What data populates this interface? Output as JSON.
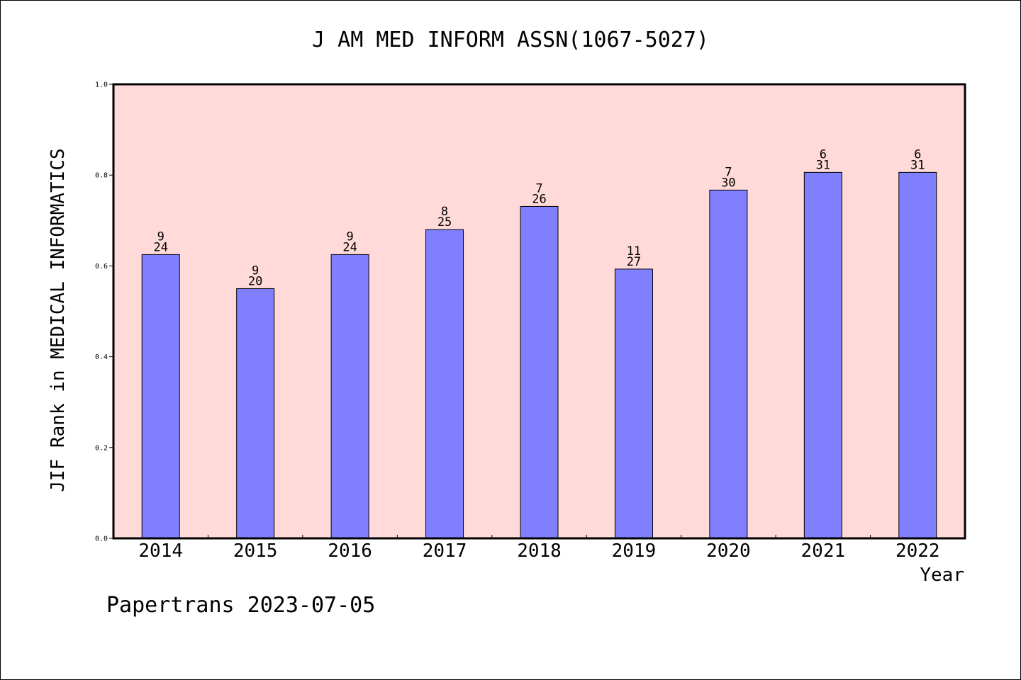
{
  "chart_data": {
    "type": "bar",
    "title": "J AM MED INFORM ASSN(1067-5027)",
    "xlabel": "Year",
    "ylabel": "JIF Rank in MEDICAL INFORMATICS",
    "footer": "Papertrans 2023-07-05",
    "ylim": [
      0,
      1.0
    ],
    "yticks": [
      "0.0",
      "0.2",
      "0.4",
      "0.6",
      "0.8",
      "1.0"
    ],
    "grid": false,
    "categories": [
      "2014",
      "2015",
      "2016",
      "2017",
      "2018",
      "2019",
      "2020",
      "2021",
      "2022"
    ],
    "values": [
      0.625,
      0.55,
      0.625,
      0.68,
      0.731,
      0.593,
      0.767,
      0.806,
      0.806
    ],
    "rank": [
      "9",
      "9",
      "9",
      "8",
      "7",
      "11",
      "7",
      "6",
      "6"
    ],
    "total": [
      "24",
      "20",
      "24",
      "25",
      "26",
      "27",
      "30",
      "31",
      "31"
    ],
    "colors": {
      "plot_background": "#ffdad8",
      "bar_fill": "#8080ff",
      "bar_stroke": "#000000"
    }
  }
}
